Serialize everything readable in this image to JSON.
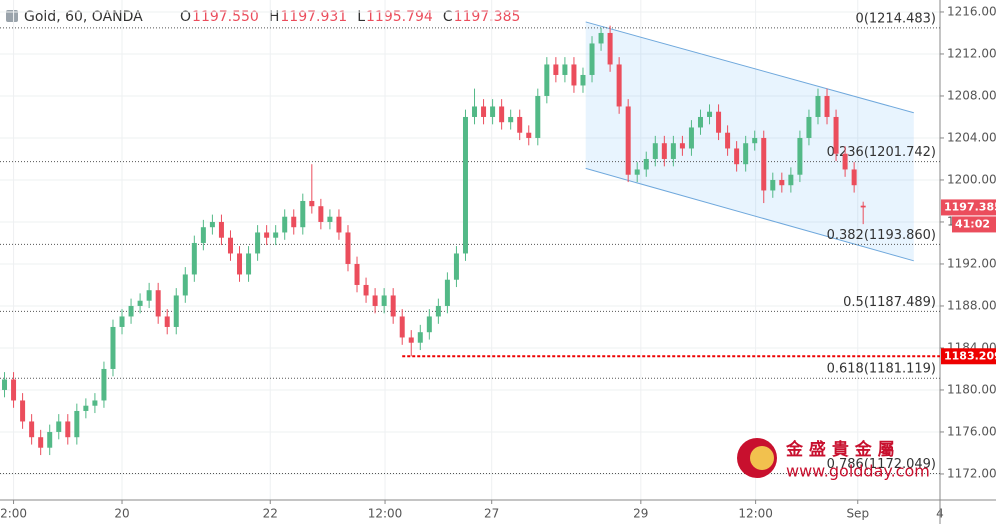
{
  "header": {
    "symbol": "Gold, 60, OANDA",
    "ohlc": [
      {
        "key": "O",
        "value": "1197.550"
      },
      {
        "key": "H",
        "value": "1197.931"
      },
      {
        "key": "L",
        "value": "1195.794"
      },
      {
        "key": "C",
        "value": "1197.385"
      }
    ]
  },
  "chart_data": {
    "type": "candlestick",
    "up_color": "#53b987",
    "down_color": "#eb4d5c",
    "xlim": [
      -0.5,
      103.5
    ],
    "ylim": [
      1169.52,
      1217.14
    ],
    "xticks": [
      {
        "value": 1,
        "label": "2:00"
      },
      {
        "value": 13,
        "label": "20"
      },
      {
        "value": 29.4,
        "label": "22"
      },
      {
        "value": 42.1,
        "label": "12:00"
      },
      {
        "value": 53.9,
        "label": "27"
      },
      {
        "value": 70.4,
        "label": "29"
      },
      {
        "value": 83.1,
        "label": "12:00"
      },
      {
        "value": 94.4,
        "label": "Sep"
      },
      {
        "value": 103.5,
        "label": "4"
      }
    ],
    "yticks": [
      {
        "value": 1172,
        "label": "1172.000"
      },
      {
        "value": 1176,
        "label": "1176.000"
      },
      {
        "value": 1180,
        "label": "1180.000"
      },
      {
        "value": 1184,
        "label": "1184.000"
      },
      {
        "value": 1188,
        "label": "1188.000"
      },
      {
        "value": 1192,
        "label": "1192.000"
      },
      {
        "value": 1196,
        "label": "1196.000"
      },
      {
        "value": 1200,
        "label": "1200.000"
      },
      {
        "value": 1204,
        "label": "1204.000"
      },
      {
        "value": 1208,
        "label": "1208.000"
      },
      {
        "value": 1212,
        "label": "1212.000"
      },
      {
        "value": 1216,
        "label": "1216.000"
      }
    ],
    "grid": true,
    "open": [
      1180,
      1181,
      1179,
      1177,
      1175.5,
      1174.5,
      1176,
      1177,
      1175.5,
      1178,
      1178.5,
      1179,
      1182,
      1186,
      1187,
      1188,
      1188.5,
      1189.5,
      1187,
      1186,
      1189,
      1191,
      1194,
      1195.5,
      1196,
      1194.5,
      1193,
      1191,
      1193,
      1195,
      1194.5,
      1195,
      1196.5,
      1195.5,
      1198,
      1197.5,
      1196,
      1196.5,
      1195,
      1192,
      1190,
      1189,
      1188,
      1189,
      1187,
      1185,
      1184.5,
      1185.5,
      1187,
      1188,
      1190.5,
      1193,
      1206,
      1207,
      1206,
      1207,
      1205.5,
      1206,
      1204.5,
      1204,
      1208,
      1211,
      1210,
      1211,
      1209,
      1210,
      1213,
      1214,
      1211,
      1207,
      1200.5,
      1201,
      1202,
      1203.5,
      1202,
      1203.5,
      1203,
      1205,
      1206,
      1206.5,
      1204.5,
      1203,
      1201.5,
      1203.5,
      1204,
      1199,
      1200,
      1199.5,
      1200.5,
      1204,
      1206,
      1208,
      1206,
      1202.5,
      1201,
      1197.55
    ],
    "high": [
      1181.7,
      1181.7,
      1179.7,
      1177.7,
      1176.2,
      1176.7,
      1177.7,
      1177.7,
      1178.7,
      1179.2,
      1179.7,
      1182.7,
      1186.7,
      1187.7,
      1188.7,
      1189.2,
      1190.2,
      1190.2,
      1187.7,
      1189.7,
      1191.7,
      1194.7,
      1196.2,
      1196.7,
      1196.7,
      1195.2,
      1193.7,
      1193.7,
      1195.7,
      1195.7,
      1195.7,
      1197.2,
      1197.2,
      1198.7,
      1201.5,
      1198.2,
      1197.2,
      1197.2,
      1195.7,
      1192.7,
      1190.7,
      1189.7,
      1189.7,
      1189.7,
      1187.7,
      1185.7,
      1186.2,
      1187.7,
      1188.7,
      1191.2,
      1193.7,
      1206.7,
      1208.7,
      1207.7,
      1207.7,
      1207.7,
      1206.7,
      1206.7,
      1205.2,
      1208.7,
      1211.7,
      1211.7,
      1211.7,
      1211.7,
      1210.7,
      1213.7,
      1214.5,
      1214.7,
      1211.7,
      1207.7,
      1201.7,
      1202.7,
      1204.2,
      1204.2,
      1204.2,
      1204.2,
      1205.7,
      1206.7,
      1207.2,
      1207.2,
      1205.2,
      1203.7,
      1204.2,
      1204.7,
      1204.7,
      1200.7,
      1200.7,
      1201.2,
      1204.7,
      1206.7,
      1208.7,
      1208.7,
      1206.7,
      1203.2,
      1201.7,
      1197.931
    ],
    "low": [
      1179.3,
      1178.3,
      1176.3,
      1174.8,
      1173.8,
      1173.8,
      1175.3,
      1174.8,
      1174.8,
      1177.3,
      1177.8,
      1178.3,
      1181.3,
      1185.3,
      1186.3,
      1187.3,
      1187.8,
      1186.3,
      1185.3,
      1185.3,
      1188.3,
      1190.3,
      1193.3,
      1194.8,
      1193.8,
      1192.3,
      1190.3,
      1190.3,
      1192.3,
      1193.8,
      1193.8,
      1194.3,
      1194.8,
      1194.8,
      1196.8,
      1195.3,
      1195.3,
      1194.3,
      1191.3,
      1189.3,
      1188.3,
      1187.3,
      1187.3,
      1186.3,
      1184.3,
      1183.209,
      1183.8,
      1184.8,
      1186.3,
      1187.3,
      1189.8,
      1192.3,
      1205.3,
      1205.3,
      1205.3,
      1204.8,
      1204.8,
      1203.8,
      1203.3,
      1203.3,
      1207.3,
      1209.3,
      1209.3,
      1208.3,
      1208.3,
      1209.3,
      1212.3,
      1210.3,
      1206.3,
      1199.8,
      1199.8,
      1200.3,
      1201.3,
      1201.3,
      1201.3,
      1202.3,
      1202.3,
      1204.3,
      1205.3,
      1203.8,
      1202.3,
      1200.8,
      1200.8,
      1202.8,
      1197.8,
      1198.3,
      1198.8,
      1198.8,
      1199.8,
      1203.3,
      1205.3,
      1205.3,
      1201.8,
      1200.3,
      1198.8,
      1195.794
    ],
    "close": [
      1181,
      1179,
      1177,
      1175.5,
      1174.5,
      1176,
      1177,
      1175.5,
      1178,
      1178.5,
      1179,
      1182,
      1186,
      1187,
      1188,
      1188.5,
      1189.5,
      1187,
      1186,
      1189,
      1191,
      1194,
      1195.5,
      1196,
      1194.5,
      1193,
      1191,
      1193,
      1195,
      1194.5,
      1195,
      1196.5,
      1195.5,
      1198,
      1197.5,
      1196,
      1196.5,
      1195,
      1192,
      1190,
      1189,
      1188,
      1189,
      1187,
      1185,
      1184.5,
      1185.5,
      1187,
      1188,
      1190.5,
      1193,
      1206,
      1207,
      1206,
      1207,
      1205.5,
      1206,
      1204.5,
      1204,
      1208,
      1211,
      1210,
      1211,
      1209,
      1210,
      1213,
      1214,
      1211,
      1207,
      1200.5,
      1201,
      1202,
      1203.5,
      1202,
      1203.5,
      1203,
      1205,
      1206,
      1206.5,
      1204.5,
      1203,
      1201.5,
      1203.5,
      1204,
      1199,
      1200,
      1199.5,
      1200.5,
      1204,
      1206,
      1208,
      1206,
      1202.5,
      1201,
      1199.5,
      1197.385
    ],
    "fib_levels": [
      {
        "value": 1214.483,
        "label": "0(1214.483)"
      },
      {
        "value": 1201.742,
        "label": "0.236(1201.742)"
      },
      {
        "value": 1193.86,
        "label": "0.382(1193.860)"
      },
      {
        "value": 1187.489,
        "label": "0.5(1187.489)"
      },
      {
        "value": 1181.119,
        "label": "0.618(1181.119)"
      },
      {
        "value": 1172.049,
        "label": "0.786(1172.049)"
      }
    ],
    "channel": {
      "x": [
        64.3,
        100.6
      ],
      "upper": [
        1215.05,
        1206.4
      ],
      "lower": [
        1201.1,
        1192.3
      ]
    },
    "support": {
      "value": 1183.209,
      "start_x": 44
    },
    "countdown": "41:02"
  },
  "watermark": {
    "name": "金 盛 貴 金 屬",
    "url": "www.goldday.com"
  }
}
